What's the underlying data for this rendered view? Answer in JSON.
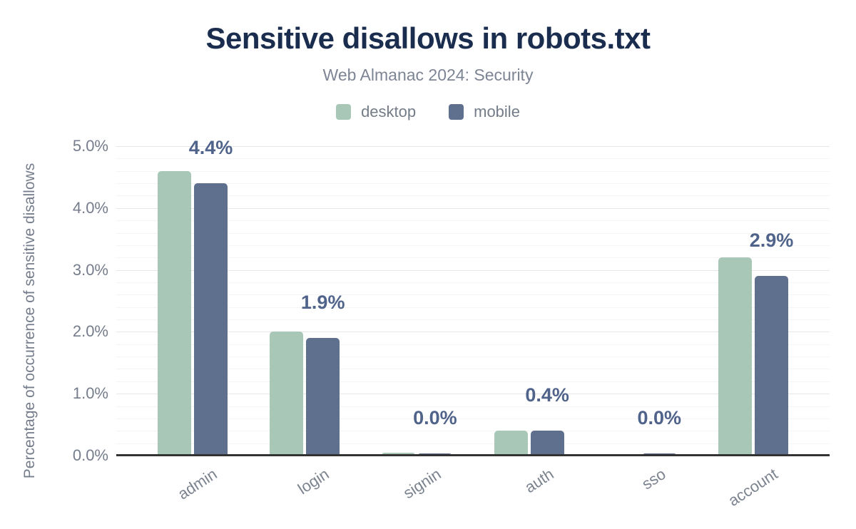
{
  "header": {
    "title": "Sensitive disallows in robots.txt",
    "subtitle": "Web Almanac 2024: Security"
  },
  "legend": {
    "items": [
      {
        "label": "desktop",
        "color": "#a8c7b6"
      },
      {
        "label": "mobile",
        "color": "#5e708e"
      }
    ]
  },
  "axis": {
    "y_title": "Percentage of occurrence of sensitive disallows"
  },
  "colors": {
    "title": "#1b2d4e",
    "subtitle": "#7d8595",
    "axis_text": "#757d8c",
    "value_label": "#50638a",
    "baseline": "#333333",
    "grid_major": "#e6e6e6",
    "grid_minor": "#f4f4f5",
    "desktop": "#a8c7b6",
    "mobile": "#5e708e"
  },
  "chart_data": {
    "type": "bar",
    "title": "Sensitive disallows in robots.txt",
    "subtitle": "Web Almanac 2024: Security",
    "categories": [
      "admin",
      "login",
      "signin",
      "auth",
      "sso",
      "account"
    ],
    "series": [
      {
        "name": "desktop",
        "color": "#a8c7b6",
        "values": [
          4.6,
          2.0,
          0.05,
          0.4,
          0.02,
          3.2
        ]
      },
      {
        "name": "mobile",
        "color": "#5e708e",
        "values": [
          4.4,
          1.9,
          0.03,
          0.4,
          0.03,
          2.9
        ]
      }
    ],
    "bar_labels": [
      "4.4%",
      "1.9%",
      "0.0%",
      "0.4%",
      "0.0%",
      "2.9%"
    ],
    "bar_labels_series": "mobile",
    "xlabel": "",
    "ylabel": "Percentage of occurrence of sensitive disallows",
    "yticks": [
      "0.0%",
      "1.0%",
      "2.0%",
      "3.0%",
      "4.0%",
      "5.0%"
    ],
    "ytick_values": [
      0,
      1,
      2,
      3,
      4,
      5
    ],
    "ylim": [
      0,
      5
    ],
    "grid": {
      "major_interval": 1.0,
      "minor_interval": 0.2
    },
    "legend_position": "top"
  }
}
